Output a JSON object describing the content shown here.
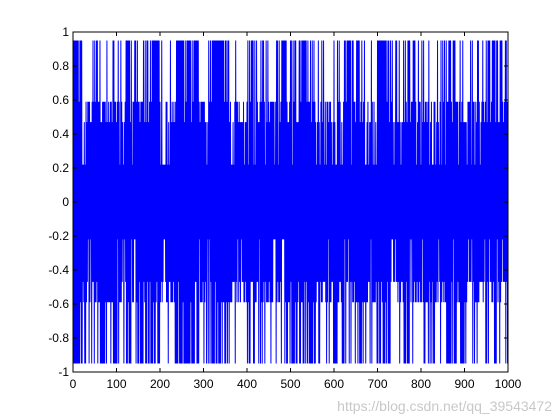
{
  "chart_data": {
    "type": "line",
    "title": "",
    "xlabel": "",
    "ylabel": "",
    "xlim": [
      0,
      1000
    ],
    "ylim": [
      -1,
      1
    ],
    "grid": false,
    "x_ticks": [
      0,
      100,
      200,
      300,
      400,
      500,
      600,
      700,
      800,
      900,
      1000
    ],
    "y_ticks": [
      -1,
      -0.8,
      -0.6,
      -0.4,
      -0.2,
      0,
      0.2,
      0.4,
      0.6,
      0.8,
      1
    ],
    "x_tick_labels": [
      "0",
      "100",
      "200",
      "300",
      "400",
      "500",
      "600",
      "700",
      "800",
      "900",
      "1000"
    ],
    "y_tick_labels": [
      "-1",
      "-0.8",
      "-0.6",
      "-0.4",
      "-0.2",
      "0",
      "0.2",
      "0.4",
      "0.6",
      "0.8",
      "1"
    ],
    "series": [
      {
        "color": "#0000ff",
        "x_range": [
          1,
          1000
        ],
        "envelope_levels": [
          0.95,
          0.59,
          0.47,
          0.22
        ],
        "segments": [
          {
            "x_start": 0,
            "x_end": 20,
            "pattern": "wide"
          },
          {
            "x_start": 20,
            "x_end": 45,
            "pattern": "dense"
          },
          {
            "x_start": 45,
            "x_end": 100,
            "pattern": "medium"
          },
          {
            "x_start": 100,
            "x_end": 120,
            "pattern": "dense"
          },
          {
            "x_start": 120,
            "x_end": 175,
            "pattern": "medium"
          },
          {
            "x_start": 175,
            "x_end": 200,
            "pattern": "wide"
          },
          {
            "x_start": 200,
            "x_end": 235,
            "pattern": "dense"
          },
          {
            "x_start": 235,
            "x_end": 290,
            "pattern": "wide"
          },
          {
            "x_start": 290,
            "x_end": 320,
            "pattern": "dense"
          },
          {
            "x_start": 320,
            "x_end": 360,
            "pattern": "wide"
          },
          {
            "x_start": 360,
            "x_end": 400,
            "pattern": "dense"
          },
          {
            "x_start": 400,
            "x_end": 445,
            "pattern": "medium"
          },
          {
            "x_start": 445,
            "x_end": 480,
            "pattern": "dense"
          },
          {
            "x_start": 480,
            "x_end": 530,
            "pattern": "medium"
          },
          {
            "x_start": 530,
            "x_end": 560,
            "pattern": "wide"
          },
          {
            "x_start": 560,
            "x_end": 600,
            "pattern": "dense"
          },
          {
            "x_start": 600,
            "x_end": 670,
            "pattern": "medium"
          },
          {
            "x_start": 670,
            "x_end": 700,
            "pattern": "dense"
          },
          {
            "x_start": 700,
            "x_end": 730,
            "pattern": "wide"
          },
          {
            "x_start": 730,
            "x_end": 760,
            "pattern": "dense"
          },
          {
            "x_start": 760,
            "x_end": 810,
            "pattern": "medium"
          },
          {
            "x_start": 810,
            "x_end": 850,
            "pattern": "dense"
          },
          {
            "x_start": 850,
            "x_end": 900,
            "pattern": "medium"
          },
          {
            "x_start": 900,
            "x_end": 950,
            "pattern": "dense"
          },
          {
            "x_start": 950,
            "x_end": 1000,
            "pattern": "medium"
          }
        ]
      }
    ]
  },
  "watermark": {
    "text": "https://blog.csdn.net/qq_39543472"
  }
}
